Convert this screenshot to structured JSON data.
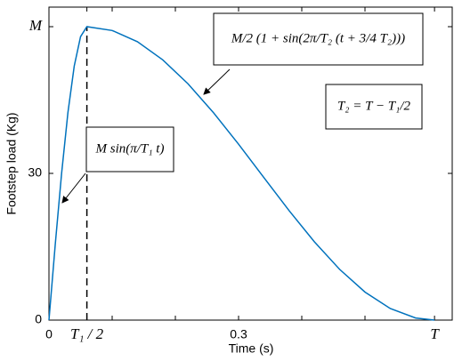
{
  "chart_data": {
    "type": "line",
    "xlabel": "Time (s)",
    "ylabel": "Footstep load (Kg)",
    "x": [
      0,
      0.01,
      0.02,
      0.03,
      0.04,
      0.05,
      0.06,
      0.1,
      0.14,
      0.18,
      0.22,
      0.26,
      0.3,
      0.34,
      0.38,
      0.42,
      0.46,
      0.5,
      0.54,
      0.58,
      0.61
    ],
    "series": [
      {
        "color": "#0072bd",
        "values": [
          0,
          15.53,
          30,
          42.43,
          51.96,
          57.96,
          60,
          59.22,
          56.92,
          53.22,
          48.32,
          42.46,
          35.96,
          29.14,
          22.37,
          16.0,
          10.36,
          5.73,
          2.37,
          0.44,
          0
        ]
      }
    ],
    "xlim": [
      0,
      0.638
    ],
    "ylim": [
      0,
      64
    ],
    "xticks": [
      0,
      {
        "value": 0.06,
        "label": "T₁ / 2"
      },
      0.1,
      0.2,
      0.3,
      0.4,
      0.5,
      {
        "value": 0.61,
        "label": "T"
      }
    ],
    "xtick_labels_shown": [
      true,
      true,
      false,
      false,
      true,
      false,
      false,
      true
    ],
    "yticks": [
      0,
      30,
      {
        "value": 60,
        "label": "M"
      }
    ],
    "dashed_at_xtick": 1,
    "annotations": [
      "M sin(π/T₁ t)",
      "M/2 (1 + sin(2π/T₂ (t + 3/4 T₂)))",
      "T₂ = T − T₁/2"
    ]
  }
}
